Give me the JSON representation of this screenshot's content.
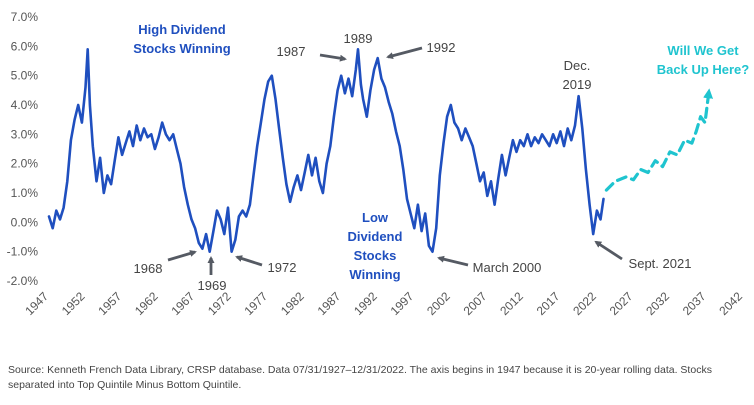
{
  "chart_data": {
    "type": "line",
    "xlabel": "",
    "ylabel": "",
    "xlim": [
      1947,
      2042
    ],
    "ylim": [
      -2.0,
      7.0
    ],
    "x_ticks": [
      "1947",
      "1952",
      "1957",
      "1962",
      "1967",
      "1972",
      "1977",
      "1982",
      "1987",
      "1992",
      "1997",
      "2002",
      "2007",
      "2012",
      "2017",
      "2022",
      "2027",
      "2032",
      "2037",
      "2042"
    ],
    "y_ticks": [
      "-2.0%",
      "-1.0%",
      "0.0%",
      "1.0%",
      "2.0%",
      "3.0%",
      "4.0%",
      "5.0%",
      "6.0%",
      "7.0%"
    ],
    "grid": false,
    "series": [
      {
        "color": "#1f4fbf",
        "style": "solid",
        "points": [
          [
            1947.0,
            0.2
          ],
          [
            1947.5,
            -0.2
          ],
          [
            1948.0,
            0.4
          ],
          [
            1948.5,
            0.1
          ],
          [
            1949.0,
            0.5
          ],
          [
            1949.5,
            1.4
          ],
          [
            1950.0,
            2.8
          ],
          [
            1950.5,
            3.5
          ],
          [
            1951.0,
            4.0
          ],
          [
            1951.5,
            3.4
          ],
          [
            1952.0,
            4.6
          ],
          [
            1952.3,
            5.9
          ],
          [
            1952.6,
            4.0
          ],
          [
            1953.0,
            2.6
          ],
          [
            1953.5,
            1.4
          ],
          [
            1954.0,
            2.2
          ],
          [
            1954.5,
            1.0
          ],
          [
            1955.0,
            1.6
          ],
          [
            1955.5,
            1.3
          ],
          [
            1956.0,
            2.1
          ],
          [
            1956.5,
            2.9
          ],
          [
            1957.0,
            2.3
          ],
          [
            1957.5,
            2.7
          ],
          [
            1958.0,
            3.1
          ],
          [
            1958.5,
            2.6
          ],
          [
            1959.0,
            3.3
          ],
          [
            1959.5,
            2.8
          ],
          [
            1960.0,
            3.2
          ],
          [
            1960.5,
            2.9
          ],
          [
            1961.0,
            3.0
          ],
          [
            1961.5,
            2.5
          ],
          [
            1962.0,
            2.9
          ],
          [
            1962.5,
            3.4
          ],
          [
            1963.0,
            3.0
          ],
          [
            1963.5,
            2.8
          ],
          [
            1964.0,
            3.0
          ],
          [
            1964.5,
            2.5
          ],
          [
            1965.0,
            2.0
          ],
          [
            1965.5,
            1.2
          ],
          [
            1966.0,
            0.6
          ],
          [
            1966.5,
            0.1
          ],
          [
            1967.0,
            -0.2
          ],
          [
            1967.5,
            -0.7
          ],
          [
            1968.0,
            -0.9
          ],
          [
            1968.5,
            -0.4
          ],
          [
            1969.0,
            -1.0
          ],
          [
            1969.5,
            -0.3
          ],
          [
            1970.0,
            0.4
          ],
          [
            1970.5,
            0.1
          ],
          [
            1971.0,
            -0.4
          ],
          [
            1971.5,
            0.5
          ],
          [
            1972.0,
            -1.0
          ],
          [
            1972.5,
            -0.6
          ],
          [
            1973.0,
            0.2
          ],
          [
            1973.5,
            0.4
          ],
          [
            1974.0,
            0.2
          ],
          [
            1974.5,
            0.6
          ],
          [
            1975.0,
            1.6
          ],
          [
            1975.5,
            2.6
          ],
          [
            1976.0,
            3.4
          ],
          [
            1976.5,
            4.2
          ],
          [
            1977.0,
            4.8
          ],
          [
            1977.5,
            5.0
          ],
          [
            1978.0,
            4.2
          ],
          [
            1978.5,
            3.2
          ],
          [
            1979.0,
            2.2
          ],
          [
            1979.5,
            1.3
          ],
          [
            1980.0,
            0.7
          ],
          [
            1980.5,
            1.2
          ],
          [
            1981.0,
            1.6
          ],
          [
            1981.5,
            1.1
          ],
          [
            1982.0,
            1.7
          ],
          [
            1982.5,
            2.3
          ],
          [
            1983.0,
            1.6
          ],
          [
            1983.5,
            2.2
          ],
          [
            1984.0,
            1.4
          ],
          [
            1984.5,
            1.0
          ],
          [
            1985.0,
            2.0
          ],
          [
            1985.5,
            2.6
          ],
          [
            1986.0,
            3.6
          ],
          [
            1986.5,
            4.5
          ],
          [
            1987.0,
            5.0
          ],
          [
            1987.5,
            4.4
          ],
          [
            1988.0,
            4.9
          ],
          [
            1988.5,
            4.3
          ],
          [
            1989.0,
            5.2
          ],
          [
            1989.3,
            5.9
          ],
          [
            1989.7,
            4.7
          ],
          [
            1990.0,
            4.2
          ],
          [
            1990.5,
            3.6
          ],
          [
            1991.0,
            4.5
          ],
          [
            1991.5,
            5.2
          ],
          [
            1992.0,
            5.6
          ],
          [
            1992.5,
            4.9
          ],
          [
            1993.0,
            4.6
          ],
          [
            1993.5,
            4.1
          ],
          [
            1994.0,
            3.7
          ],
          [
            1994.5,
            3.1
          ],
          [
            1995.0,
            2.6
          ],
          [
            1995.5,
            1.8
          ],
          [
            1996.0,
            0.8
          ],
          [
            1996.5,
            0.3
          ],
          [
            1997.0,
            -0.2
          ],
          [
            1997.5,
            0.6
          ],
          [
            1998.0,
            -0.3
          ],
          [
            1998.5,
            0.3
          ],
          [
            1999.0,
            -0.8
          ],
          [
            1999.5,
            -1.0
          ],
          [
            2000.0,
            -0.2
          ],
          [
            2000.5,
            1.6
          ],
          [
            2001.0,
            2.7
          ],
          [
            2001.5,
            3.6
          ],
          [
            2002.0,
            4.0
          ],
          [
            2002.5,
            3.4
          ],
          [
            2003.0,
            3.2
          ],
          [
            2003.5,
            2.8
          ],
          [
            2004.0,
            3.2
          ],
          [
            2004.5,
            2.9
          ],
          [
            2005.0,
            2.6
          ],
          [
            2005.5,
            2.0
          ],
          [
            2006.0,
            1.4
          ],
          [
            2006.5,
            1.7
          ],
          [
            2007.0,
            0.9
          ],
          [
            2007.5,
            1.4
          ],
          [
            2008.0,
            0.6
          ],
          [
            2008.5,
            1.5
          ],
          [
            2009.0,
            2.3
          ],
          [
            2009.5,
            1.6
          ],
          [
            2010.0,
            2.2
          ],
          [
            2010.5,
            2.8
          ],
          [
            2011.0,
            2.4
          ],
          [
            2011.5,
            2.8
          ],
          [
            2012.0,
            2.6
          ],
          [
            2012.5,
            3.0
          ],
          [
            2013.0,
            2.6
          ],
          [
            2013.5,
            2.9
          ],
          [
            2014.0,
            2.7
          ],
          [
            2014.5,
            3.0
          ],
          [
            2015.0,
            2.8
          ],
          [
            2015.5,
            2.6
          ],
          [
            2016.0,
            3.0
          ],
          [
            2016.5,
            2.7
          ],
          [
            2017.0,
            3.1
          ],
          [
            2017.5,
            2.6
          ],
          [
            2018.0,
            3.2
          ],
          [
            2018.5,
            2.8
          ],
          [
            2019.0,
            3.3
          ],
          [
            2019.5,
            4.3
          ],
          [
            2020.0,
            3.2
          ],
          [
            2020.5,
            1.8
          ],
          [
            2021.0,
            0.6
          ],
          [
            2021.5,
            -0.4
          ],
          [
            2022.0,
            0.4
          ],
          [
            2022.5,
            0.1
          ],
          [
            2022.9,
            0.8
          ]
        ]
      },
      {
        "color": "#1fc4cf",
        "style": "dashed",
        "points": [
          [
            2023.3,
            1.1
          ],
          [
            2024.5,
            1.4
          ],
          [
            2026.0,
            1.55
          ],
          [
            2027.0,
            1.45
          ],
          [
            2028.0,
            1.8
          ],
          [
            2029.0,
            1.7
          ],
          [
            2030.0,
            2.1
          ],
          [
            2031.0,
            1.9
          ],
          [
            2032.0,
            2.4
          ],
          [
            2033.0,
            2.3
          ],
          [
            2034.0,
            2.8
          ],
          [
            2035.0,
            2.7
          ],
          [
            2035.6,
            3.1
          ],
          [
            2036.2,
            3.6
          ],
          [
            2036.8,
            3.4
          ],
          [
            2037.3,
            4.4
          ]
        ]
      }
    ],
    "annotations": [
      {
        "key": "high_div",
        "lines": [
          "High Dividend",
          "Stocks Winning"
        ]
      },
      {
        "key": "low_div",
        "lines": [
          "Low",
          "Dividend",
          "Stocks",
          "Winning"
        ]
      },
      {
        "key": "will_we",
        "lines": [
          "Will We Get",
          "Back Up Here?"
        ]
      },
      {
        "key": "y1987",
        "lines": [
          "1987"
        ]
      },
      {
        "key": "y1989",
        "lines": [
          "1989"
        ]
      },
      {
        "key": "y1992",
        "lines": [
          "1992"
        ]
      },
      {
        "key": "dec2019",
        "lines": [
          "Dec.",
          "2019"
        ]
      },
      {
        "key": "y1968",
        "lines": [
          "1968"
        ]
      },
      {
        "key": "y1969",
        "lines": [
          "1969"
        ]
      },
      {
        "key": "y1972",
        "lines": [
          "1972"
        ]
      },
      {
        "key": "march2000",
        "lines": [
          "March 2000"
        ]
      },
      {
        "key": "sept2021",
        "lines": [
          "Sept. 2021"
        ]
      }
    ]
  },
  "source_note": "Source: Kenneth French Data Library, CRSP database. Data 07/31/1927–12/31/2022. The axis begins in 1947 because it is 20-year rolling data. Stocks separated into Top Quintile Minus Bottom Quintile."
}
